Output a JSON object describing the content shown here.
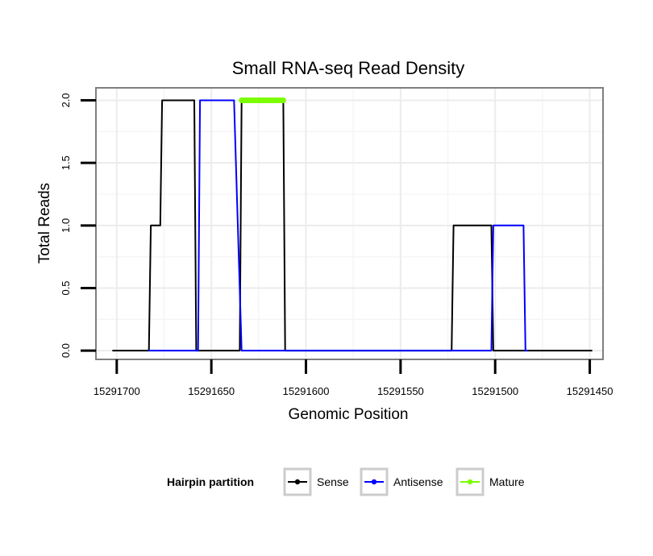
{
  "chart_data": {
    "type": "line",
    "title": "Small RNA-seq Read Density",
    "xlabel": "Genomic Position",
    "ylabel": "Total Reads",
    "x_reversed": true,
    "xlim": [
      15291711,
      15291443
    ],
    "ylim": [
      -0.07,
      2.1
    ],
    "x_ticks": [
      15291700,
      15291650,
      15291600,
      15291550,
      15291500,
      15291450
    ],
    "x_tick_labels": [
      "15291700",
      "15291650",
      "15291600",
      "15291550",
      "15291500",
      "15291450"
    ],
    "y_ticks": [
      0.0,
      0.5,
      1.0,
      1.5,
      2.0
    ],
    "y_tick_labels": [
      "0.0",
      "0.5",
      "1.0",
      "1.5",
      "2.0"
    ],
    "grid": true,
    "legend": {
      "title": "Hairpin partition",
      "position": "bottom",
      "entries": [
        {
          "label": "Sense",
          "color": "#000000"
        },
        {
          "label": "Antisense",
          "color": "#0000ff"
        },
        {
          "label": "Mature",
          "color": "#7cfc00"
        }
      ]
    },
    "series": [
      {
        "name": "Sense",
        "color": "#000000",
        "x": [
          15291702,
          15291683,
          15291682,
          15291680,
          15291679,
          15291677,
          15291676,
          15291660,
          15291659,
          15291658,
          15291635,
          15291634,
          15291613,
          15291612,
          15291611,
          15291523,
          15291522,
          15291503,
          15291502,
          15291501,
          15291449
        ],
        "y": [
          0,
          0,
          1,
          1,
          1,
          1,
          2,
          2,
          2,
          0,
          0,
          2,
          2,
          2,
          0,
          0,
          1,
          1,
          1,
          0,
          0
        ]
      },
      {
        "name": "Antisense",
        "color": "#0000ff",
        "x": [
          15291683,
          15291658,
          15291657,
          15291656,
          15291639,
          15291638,
          15291634,
          15291612,
          15291611,
          15291503,
          15291502,
          15291501,
          15291485,
          15291484,
          15291483
        ],
        "y": [
          0,
          0,
          0,
          2,
          2,
          2,
          0,
          0,
          0,
          0,
          0,
          1,
          1,
          0,
          0
        ]
      },
      {
        "name": "Mature",
        "color": "#7cfc00",
        "x": [
          15291634,
          15291612
        ],
        "y": [
          2,
          2
        ]
      }
    ]
  }
}
